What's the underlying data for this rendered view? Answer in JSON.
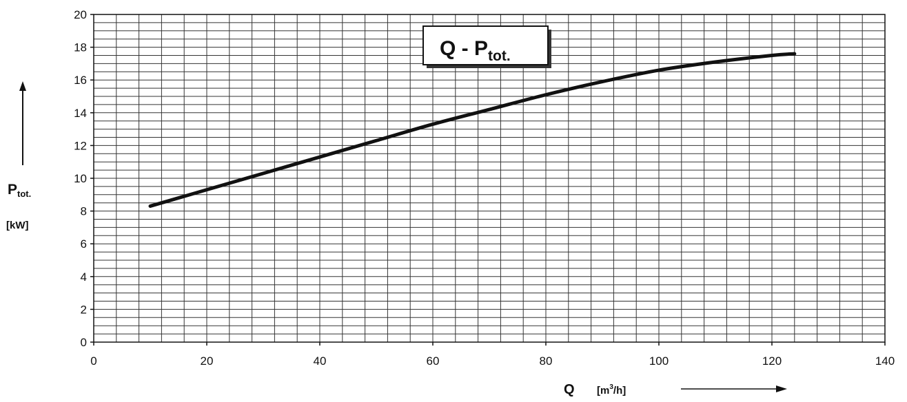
{
  "chart_data": {
    "type": "line",
    "title": {
      "main": "Q - P",
      "sub": "tot."
    },
    "xlabel": {
      "symbol": "Q",
      "unit_pre": "[m",
      "unit_sup": "3",
      "unit_post": "/h]"
    },
    "ylabel": {
      "symbol": "P",
      "sub": "tot.",
      "unit": "[kW]"
    },
    "xlim": [
      0,
      140
    ],
    "ylim": [
      0,
      20
    ],
    "x_ticks": [
      0,
      20,
      40,
      60,
      80,
      100,
      120,
      140
    ],
    "y_ticks": [
      0,
      2,
      4,
      6,
      8,
      10,
      12,
      14,
      16,
      18,
      20
    ],
    "grid": true,
    "series": [
      {
        "x": [
          10,
          20,
          30,
          40,
          50,
          60,
          70,
          80,
          90,
          100,
          110,
          120,
          124
        ],
        "y": [
          8.3,
          9.3,
          10.3,
          11.3,
          12.3,
          13.3,
          14.2,
          15.1,
          15.9,
          16.6,
          17.1,
          17.5,
          17.6
        ]
      }
    ]
  }
}
